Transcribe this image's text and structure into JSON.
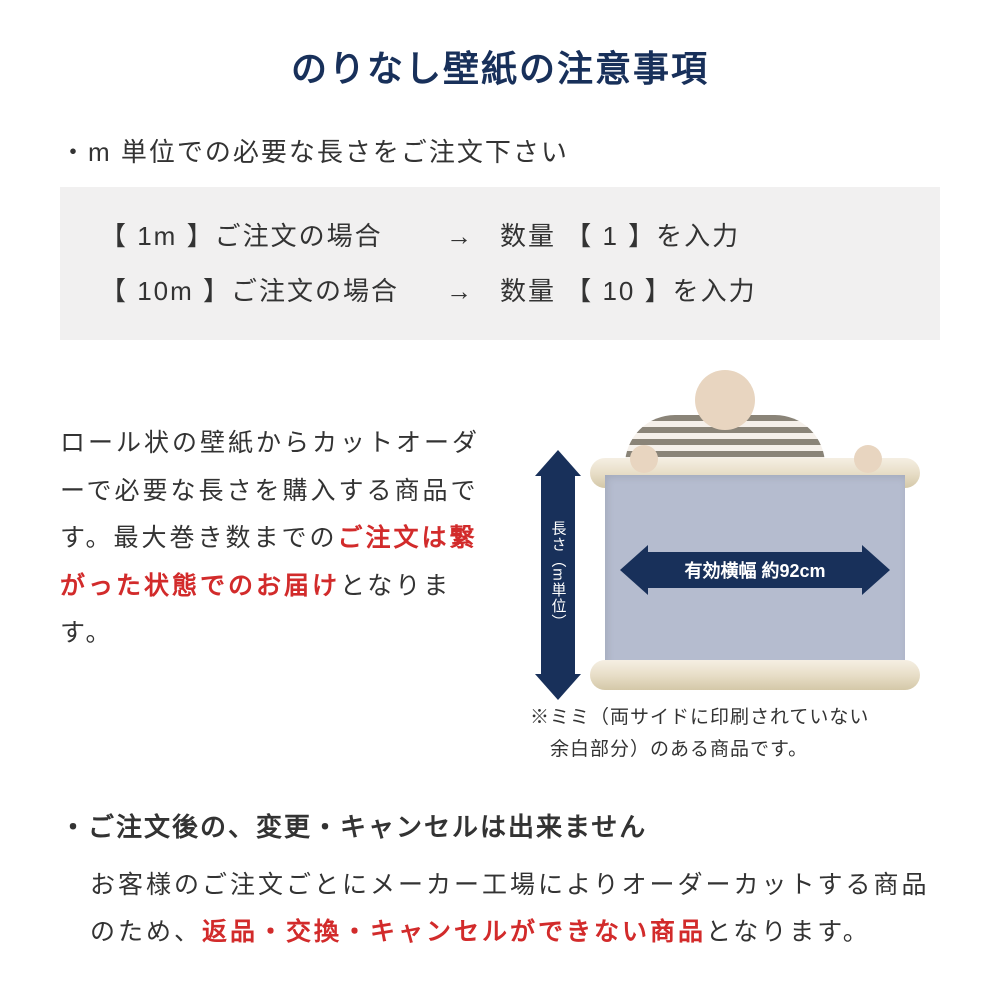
{
  "colors": {
    "title": "#18305a",
    "text": "#333333",
    "highlight": "#d22b2b",
    "box_bg": "#f1f0f0",
    "arrow": "#18305a",
    "arrow_text": "#ffffff",
    "paper": "#b5bccf"
  },
  "title": "のりなし壁紙の注意事項",
  "bullet1": "・m 単位での必要な長さをご注文下さい",
  "order_table": {
    "rows": [
      {
        "left": "【 1m 】ご注文の場合",
        "arrow": "→",
        "right": "数量 【 1 】を入力"
      },
      {
        "left": "【 10m 】ご注文の場合",
        "arrow": "→",
        "right": "数量 【 10 】を入力"
      }
    ]
  },
  "mid_paragraph": {
    "part1": "ロール状の壁紙からカットオーダーで必要な長さを購入する商品です。最大巻き数までの",
    "highlight": "ご注文は繋がった状態でのお届け",
    "part2": "となります。"
  },
  "diagram": {
    "v_label": "長さ（m単位）",
    "h_label": "有効横幅 約92cm",
    "note_line1": "※ミミ（両サイドに印刷されていない",
    "note_line2": "　余白部分）のある商品です。"
  },
  "bullet2": "・ご注文後の、変更・キャンセルは出来ません",
  "bottom_paragraph": {
    "part1": "お客様のご注文ごとにメーカー工場によりオーダーカットする商品のため、",
    "highlight": "返品・交換・キャンセルができない商品",
    "part2": "となります。"
  }
}
